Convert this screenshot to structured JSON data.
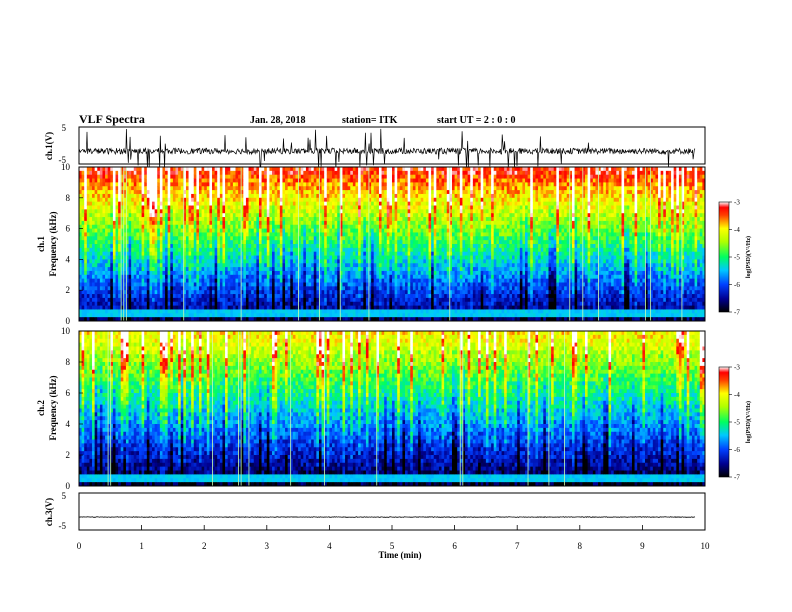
{
  "header": {
    "title": "VLF Spectra",
    "date": "Jan. 28, 2018",
    "station": "station= ITK",
    "start": "start UT =  2 : 0 : 0"
  },
  "chart_data": [
    {
      "type": "line",
      "ylabel": "ch.1(V)",
      "ylim": [
        -5,
        5
      ],
      "yticks": [
        "5",
        "-5"
      ],
      "baseline": -1.5
    },
    {
      "type": "heatmap",
      "ylabel_1": "ch.1",
      "ylabel_2": "Frequency (kHz)",
      "ylim": [
        0,
        10
      ],
      "yticks": [
        "0",
        "2",
        "4",
        "6",
        "8",
        "10"
      ],
      "colorbar": {
        "label": "log(PSD)(V²/Hz)",
        "ticks": [
          "-3",
          "-4",
          "-5",
          "-6",
          "-7"
        ],
        "range": [
          -7,
          -3
        ]
      }
    },
    {
      "type": "heatmap",
      "ylabel_1": "ch.2",
      "ylabel_2": "Frequency (kHz)",
      "ylim": [
        0,
        10
      ],
      "yticks": [
        "0",
        "2",
        "4",
        "6",
        "8",
        "10"
      ],
      "colorbar": {
        "label": "log(PSD)(V²/Hz)",
        "ticks": [
          "-3",
          "-4",
          "-5",
          "-6",
          "-7"
        ],
        "range": [
          -7,
          -3
        ]
      }
    },
    {
      "type": "line",
      "ylabel": "ch.3(V)",
      "ylim": [
        -5,
        5
      ],
      "yticks": [
        "5",
        "-5"
      ],
      "baseline": -1.5
    }
  ],
  "xaxis": {
    "label": "Time (min)",
    "range": [
      0,
      10
    ],
    "ticks": [
      "0",
      "1",
      "2",
      "3",
      "4",
      "5",
      "6",
      "7",
      "8",
      "9",
      "10"
    ]
  }
}
